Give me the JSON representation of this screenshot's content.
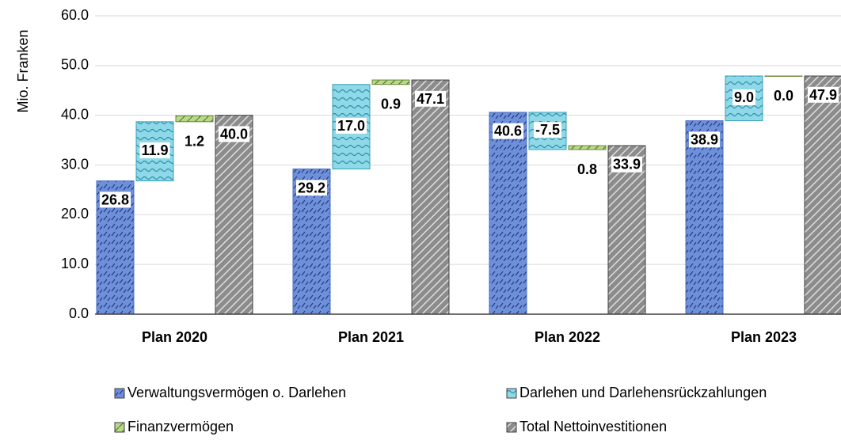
{
  "chart_data": {
    "type": "waterfall",
    "y_label": "Mio. Franken",
    "categories": [
      "Plan 2020",
      "Plan 2021",
      "Plan 2022",
      "Plan 2023"
    ],
    "series": [
      {
        "name": "Verwaltungsvermögen o. Darlehen",
        "color": "#6f8fd8",
        "values": [
          26.8,
          29.2,
          40.6,
          38.9
        ],
        "value_labels": [
          "26.8",
          "29.2",
          "40.6",
          "38.9"
        ]
      },
      {
        "name": "Darlehen und Darlehensrückzahlungen",
        "color": "#8ed8e8",
        "values": [
          11.9,
          17.0,
          -7.5,
          9.0
        ],
        "value_labels": [
          "11.9",
          "17.0",
          "-7.5",
          "9.0"
        ]
      },
      {
        "name": "Finanzvermögen",
        "color": "#b8d88a",
        "values": [
          1.2,
          0.9,
          0.8,
          0.0
        ],
        "value_labels": [
          "1.2",
          "0.9",
          "0.8",
          "0.0"
        ]
      },
      {
        "name": "Total Nettoinvestitionen",
        "color": "#8c8c8c",
        "values": [
          40.0,
          47.1,
          33.9,
          47.9
        ],
        "value_labels": [
          "40.0",
          "47.1",
          "33.9",
          "47.9"
        ]
      }
    ],
    "ylim": [
      0,
      60
    ],
    "yticks": [
      {
        "value": 0,
        "label": "0.0"
      },
      {
        "value": 10,
        "label": "10.0"
      },
      {
        "value": 20,
        "label": "20.0"
      },
      {
        "value": 30,
        "label": "30.0"
      },
      {
        "value": 40,
        "label": "40.0"
      },
      {
        "value": 50,
        "label": "50.0"
      },
      {
        "value": 60,
        "label": "60.0"
      }
    ],
    "grid": true
  }
}
